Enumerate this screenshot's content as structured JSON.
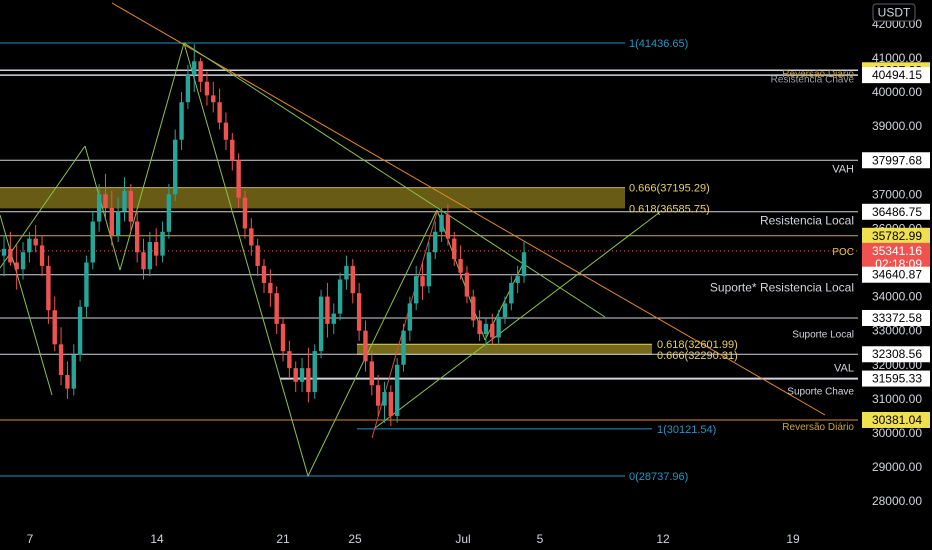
{
  "currency_badge": "USDT",
  "colors": {
    "background": "#000000",
    "up": "#26a69a",
    "down": "#ef5350",
    "level_white": "#d1d4dc",
    "fib_blue": "#2196c8",
    "fib_yellow": "#d4c65a",
    "zone_fill": "#8a7a1c",
    "trend_orange": "#e58a28",
    "trend_green": "#8bc34a",
    "poc": "#e8c840",
    "current_price_bg": "#ef5350",
    "highlight_bg": "#f0e050"
  },
  "chart_data": {
    "type": "candlestick",
    "y_axis": {
      "range": [
        27050,
        42800
      ],
      "ticks": [
        "42000.00",
        "41000.00",
        "40000.00",
        "39000.00",
        "38000.00",
        "37000.00",
        "36000.00",
        "35000.00",
        "34000.00",
        "33000.00",
        "32000.00",
        "31000.00",
        "30000.00",
        "29000.00",
        "28000.00"
      ]
    },
    "x_axis": {
      "ticks": [
        "7",
        "14",
        "21",
        "25",
        "Jul",
        "5",
        "12",
        "19"
      ]
    },
    "price_labels": [
      {
        "value": 40637.23,
        "text": "40637.23",
        "style": "highlight"
      },
      {
        "value": 40494.15,
        "text": "40494.15",
        "style": "plain"
      },
      {
        "value": 37997.68,
        "text": "37997.68",
        "style": "plain"
      },
      {
        "value": 36486.75,
        "text": "36486.75",
        "style": "plain"
      },
      {
        "value": 35782.99,
        "text": "35782.99",
        "style": "highlight"
      },
      {
        "value": 35341.16,
        "text": "35341.16",
        "sub": "02:18:09",
        "style": "current"
      },
      {
        "value": 34640.87,
        "text": "34640.87",
        "style": "plain"
      },
      {
        "value": 33372.58,
        "text": "33372.58",
        "style": "plain"
      },
      {
        "value": 32308.56,
        "text": "32308.56",
        "style": "plain"
      },
      {
        "value": 31595.33,
        "text": "31595.33",
        "style": "plain"
      },
      {
        "value": 30381.04,
        "text": "30381.04",
        "style": "highlight"
      }
    ],
    "level_labels": [
      {
        "value": 40560,
        "text": "Reversão Diário",
        "color": "#c9a43c",
        "size": 10
      },
      {
        "value": 40390,
        "text": "Resistencia Chave",
        "color": "#9aa0aa",
        "size": 10
      },
      {
        "value": 37750,
        "text": "VAH",
        "color": "#d1d4dc",
        "size": 11
      },
      {
        "value": 36230,
        "text": "Resistencia Local",
        "color": "#d1d4dc",
        "size": 12
      },
      {
        "value": 35330,
        "text": "POC",
        "color": "#e8c840",
        "size": 10
      },
      {
        "value": 34270,
        "text": "Suporte*  Resistencia Local",
        "color": "#d1d4dc",
        "size": 12
      },
      {
        "value": 32920,
        "text": "Suporte Local",
        "color": "#d1d4dc",
        "size": 10
      },
      {
        "value": 31920,
        "text": "VAL",
        "color": "#d1d4dc",
        "size": 11
      },
      {
        "value": 31250,
        "text": "Suporte Chave",
        "color": "#d1d4dc",
        "size": 10
      },
      {
        "value": 30200,
        "text": "Reversão Diário",
        "color": "#c9a43c",
        "size": 10
      }
    ],
    "fib_labels": [
      {
        "value": 41436.65,
        "text": "1(41436.65)",
        "color": "#2196c8"
      },
      {
        "value": 37195.29,
        "text": "0.666(37195.29)",
        "color": "#e8d060"
      },
      {
        "value": 36585.75,
        "text": "0.618(36585.75)",
        "color": "#e8d060"
      },
      {
        "value": 32601.99,
        "text": "0.618(32601.99)",
        "color": "#e8d060"
      },
      {
        "value": 32290.31,
        "text": "0.666(32290.31)",
        "color": "#e8d060"
      },
      {
        "value": 30121.54,
        "text": "1(30121.54)",
        "color": "#2196c8"
      },
      {
        "value": 28737.96,
        "text": "0(28737.96)",
        "color": "#2196c8"
      }
    ],
    "candles": [
      [
        35200,
        35800,
        34600,
        35400
      ],
      [
        35400,
        35900,
        34900,
        35000
      ],
      [
        35000,
        35500,
        34200,
        34800
      ],
      [
        34800,
        35600,
        34500,
        35300
      ],
      [
        35300,
        35900,
        35000,
        35700
      ],
      [
        35700,
        36100,
        35300,
        35500
      ],
      [
        35500,
        35800,
        34600,
        34900
      ],
      [
        34900,
        35200,
        33200,
        33600
      ],
      [
        33600,
        34000,
        32400,
        32600
      ],
      [
        32600,
        33100,
        31400,
        31700
      ],
      [
        31700,
        32100,
        31000,
        31300
      ],
      [
        31300,
        32600,
        31100,
        32300
      ],
      [
        32300,
        33900,
        32100,
        33700
      ],
      [
        33700,
        35200,
        33400,
        35000
      ],
      [
        35000,
        36500,
        34800,
        36200
      ],
      [
        36200,
        37300,
        35900,
        37000
      ],
      [
        37000,
        37600,
        36300,
        36600
      ],
      [
        36600,
        37100,
        35500,
        35800
      ],
      [
        35800,
        36900,
        35600,
        36500
      ],
      [
        36500,
        37500,
        36200,
        37100
      ],
      [
        37100,
        37300,
        35900,
        36200
      ],
      [
        36200,
        36500,
        35000,
        35300
      ],
      [
        35300,
        35700,
        34500,
        34800
      ],
      [
        34800,
        35900,
        34600,
        35600
      ],
      [
        35600,
        36000,
        34900,
        35200
      ],
      [
        35200,
        36200,
        35000,
        35900
      ],
      [
        35900,
        37300,
        35700,
        37000
      ],
      [
        37000,
        38900,
        36800,
        38600
      ],
      [
        38600,
        40000,
        38300,
        39700
      ],
      [
        39700,
        40800,
        39500,
        40500
      ],
      [
        40500,
        41400,
        40000,
        40900
      ],
      [
        40900,
        41000,
        40000,
        40300
      ],
      [
        40300,
        40600,
        39600,
        39900
      ],
      [
        39900,
        40300,
        39400,
        39700
      ],
      [
        39700,
        40100,
        38900,
        39100
      ],
      [
        39100,
        39400,
        38300,
        38600
      ],
      [
        38600,
        38800,
        37700,
        38000
      ],
      [
        38000,
        38200,
        36600,
        36900
      ],
      [
        36900,
        37100,
        35700,
        36000
      ],
      [
        36000,
        36300,
        35200,
        35500
      ],
      [
        35500,
        35700,
        34600,
        34900
      ],
      [
        34900,
        35100,
        34100,
        34400
      ],
      [
        34400,
        34800,
        33700,
        34100
      ],
      [
        34100,
        34300,
        32900,
        33200
      ],
      [
        33200,
        33400,
        32100,
        32400
      ],
      [
        32400,
        32700,
        31600,
        31900
      ],
      [
        31900,
        32100,
        31200,
        31500
      ],
      [
        31500,
        32200,
        31200,
        31900
      ],
      [
        31900,
        32500,
        30900,
        31200
      ],
      [
        31200,
        32600,
        31000,
        32400
      ],
      [
        32400,
        34200,
        32200,
        34000
      ],
      [
        34000,
        34400,
        32800,
        33200
      ],
      [
        33200,
        33800,
        32900,
        33500
      ],
      [
        33500,
        34700,
        33300,
        34500
      ],
      [
        34500,
        35200,
        34200,
        34900
      ],
      [
        34900,
        35100,
        33800,
        34100
      ],
      [
        34100,
        34400,
        32700,
        33000
      ],
      [
        33000,
        33300,
        31800,
        32100
      ],
      [
        32100,
        32400,
        31100,
        31400
      ],
      [
        31400,
        31700,
        30500,
        30800
      ],
      [
        30800,
        31500,
        30300,
        31200
      ],
      [
        31200,
        31400,
        30200,
        30500
      ],
      [
        30500,
        32200,
        30300,
        32000
      ],
      [
        32000,
        33200,
        31800,
        33000
      ],
      [
        33000,
        34000,
        32700,
        33800
      ],
      [
        33800,
        34900,
        33600,
        34600
      ],
      [
        34600,
        35000,
        33900,
        34300
      ],
      [
        34300,
        35600,
        34100,
        35300
      ],
      [
        35300,
        36200,
        35100,
        35900
      ],
      [
        35900,
        36600,
        35600,
        36400
      ],
      [
        36400,
        36700,
        35500,
        35700
      ],
      [
        35700,
        35900,
        34900,
        35100
      ],
      [
        35100,
        35500,
        34500,
        34700
      ],
      [
        34700,
        34900,
        33800,
        34000
      ],
      [
        34000,
        34200,
        33100,
        33300
      ],
      [
        33300,
        33600,
        32700,
        32900
      ],
      [
        32900,
        33400,
        32500,
        33200
      ],
      [
        33200,
        33500,
        32600,
        32800
      ],
      [
        32800,
        33600,
        32600,
        33400
      ],
      [
        33400,
        34000,
        33200,
        33800
      ],
      [
        33800,
        34600,
        33600,
        34400
      ],
      [
        34400,
        34900,
        34100,
        34600
      ],
      [
        34600,
        35600,
        34400,
        35300
      ]
    ]
  }
}
